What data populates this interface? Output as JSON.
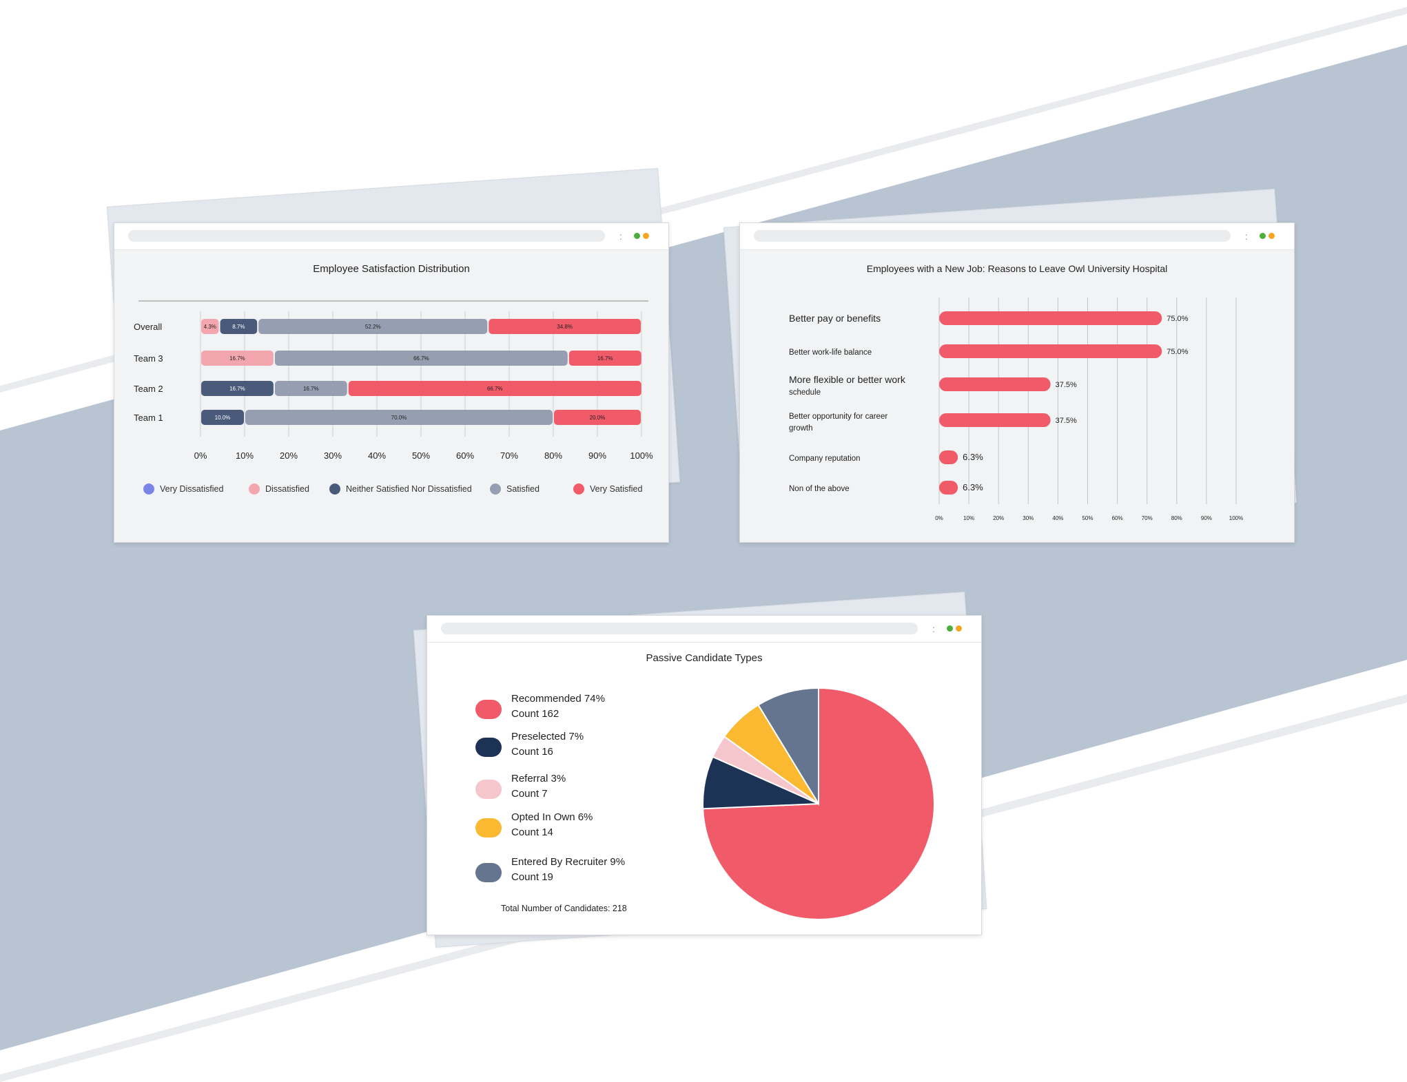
{
  "colors": {
    "very_dissatisfied": "#7b84e8",
    "dissatisfied": "#f4a6ae",
    "neutral": "#4a5a7a",
    "satisfied": "#969fb1",
    "very_satisfied": "#f05a69",
    "bar_red": "#f05a69",
    "pie_recommended": "#f05a69",
    "pie_preselected": "#1c3355",
    "pie_referral": "#f6c6cd",
    "pie_opted": "#fbb831",
    "pie_recruiter": "#65758f",
    "background_band": "#b8c4d2",
    "dot_green": "#4caf3c",
    "dot_orange": "#f5a623"
  },
  "window_controls": {
    "kebab": ":"
  },
  "satisfaction_card": {
    "chart_data": {
      "type": "bar",
      "orientation": "horizontal-stacked",
      "title": "Employee Satisfaction Distribution",
      "categories": [
        "Overall",
        "Team 3",
        "Team 2",
        "Team 1"
      ],
      "series": [
        {
          "name": "Very Dissatisfied",
          "color_key": "very_dissatisfied",
          "values": [
            0,
            0,
            0,
            0
          ],
          "labels": [
            "",
            "",
            "",
            ""
          ]
        },
        {
          "name": "Dissatisfied",
          "color_key": "dissatisfied",
          "values": [
            4.3,
            16.7,
            0,
            0
          ],
          "labels": [
            "4.3%",
            "16.7%",
            "",
            ""
          ]
        },
        {
          "name": "Neither Satisfied Nor Dissatisfied",
          "color_key": "neutral",
          "values": [
            8.7,
            0,
            16.7,
            10.0
          ],
          "labels": [
            "8.7%",
            "",
            "16.7%",
            "10.0%"
          ]
        },
        {
          "name": "Satisfied",
          "color_key": "satisfied",
          "values": [
            52.2,
            66.7,
            16.7,
            70.0
          ],
          "labels": [
            "52.2%",
            "66.7%",
            "16.7%",
            "70.0%"
          ]
        },
        {
          "name": "Very Satisfied",
          "color_key": "very_satisfied",
          "values": [
            34.8,
            16.7,
            66.7,
            20.0
          ],
          "labels": [
            "34.8%",
            "16.7%",
            "66.7%",
            "20.0%"
          ]
        }
      ],
      "xlim": [
        0,
        100
      ],
      "xticks": [
        "0%",
        "10%",
        "20%",
        "30%",
        "40%",
        "50%",
        "60%",
        "70%",
        "80%",
        "90%",
        "100%"
      ],
      "grid": true,
      "legend_position": "bottom"
    }
  },
  "reasons_card": {
    "chart_data": {
      "type": "bar",
      "orientation": "horizontal",
      "title": "Employees with a New Job: Reasons to Leave Owl University Hospital",
      "categories": [
        {
          "line1": "Better pay or benefits",
          "line2": ""
        },
        {
          "line1": "Better work-life balance",
          "line2": ""
        },
        {
          "line1": "More flexible or better work",
          "line2": "schedule"
        },
        {
          "line1": "Better opportunity for career",
          "line2": "growth"
        },
        {
          "line1": "Company reputation",
          "line2": ""
        },
        {
          "line1": "Non of the above",
          "line2": ""
        }
      ],
      "values": [
        75.0,
        75.0,
        37.5,
        37.5,
        6.3,
        6.3
      ],
      "labels": [
        "75.0%",
        "75.0%",
        "37.5%",
        "37.5%",
        "6.3%",
        "6.3%"
      ],
      "xlim": [
        0,
        100
      ],
      "xticks": [
        "0%",
        "10%",
        "20%",
        "30%",
        "40%",
        "50%",
        "60%",
        "70%",
        "80%",
        "90%",
        "100%"
      ],
      "grid": true
    }
  },
  "candidates_card": {
    "chart_data": {
      "type": "pie",
      "title": "Passive Candidate Types",
      "slices": [
        {
          "name": "Recommended 74%",
          "count_label": "Count 162",
          "value": 162,
          "color_key": "pie_recommended"
        },
        {
          "name": "Preselected 7%",
          "count_label": "Count 16",
          "value": 16,
          "color_key": "pie_preselected"
        },
        {
          "name": "Referral 3%",
          "count_label": "Count 7",
          "value": 7,
          "color_key": "pie_referral"
        },
        {
          "name": "Opted In Own 6%",
          "count_label": "Count 14",
          "value": 14,
          "color_key": "pie_opted"
        },
        {
          "name": "Entered By Recruiter 9%",
          "count_label": "Count 19",
          "value": 19,
          "color_key": "pie_recruiter"
        }
      ],
      "total_label": "Total Number of Candidates: 218",
      "legend_position": "left"
    }
  }
}
